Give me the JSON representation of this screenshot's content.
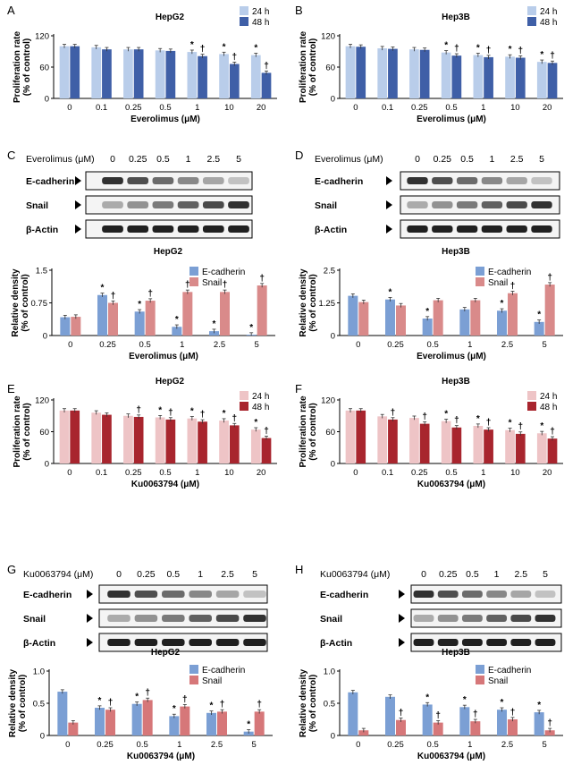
{
  "figure": {
    "panels": [
      "A",
      "B",
      "C",
      "D",
      "E",
      "F",
      "G",
      "H"
    ],
    "prolif_ylabel": [
      "Proliferation rate",
      "(% of control)"
    ],
    "density_ylabel": [
      "Relative density",
      "(% of control)"
    ]
  },
  "colors": {
    "light_blue": "#b9cdea",
    "dark_blue": "#3f5fa7",
    "density_blue": "#7b9fd4",
    "density_red": "#d98a8a",
    "light_red": "#eec4c6",
    "dark_red": "#a8252e",
    "density_red2": "#d67779"
  },
  "blots": [
    {
      "panel": "C",
      "x_label": "Everolimus (μM)",
      "concentrations": [
        "0",
        "0.25",
        "0.5",
        "1",
        "2.5",
        "5"
      ],
      "bands": [
        "E-cadherin",
        "Snail",
        "β-Actin"
      ]
    },
    {
      "panel": "D",
      "x_label": "Everolimus (μM)",
      "concentrations": [
        "0",
        "0.25",
        "0.5",
        "1",
        "2.5",
        "5"
      ],
      "bands": [
        "E-cadherin",
        "Snail",
        "β-Actin"
      ]
    },
    {
      "panel": "G",
      "x_label": "Ku0063794 (μM)",
      "concentrations": [
        "0",
        "0.25",
        "0.5",
        "1",
        "2.5",
        "5"
      ],
      "bands": [
        "E-cadherin",
        "Snail",
        "β-Actin"
      ]
    },
    {
      "panel": "H",
      "x_label": "Ku0063794 (μM)",
      "concentrations": [
        "0",
        "0.25",
        "0.5",
        "1",
        "2.5",
        "5"
      ],
      "bands": [
        "E-cadherin",
        "Snail",
        "β-Actin"
      ]
    }
  ],
  "chart_data": [
    {
      "panel": "A",
      "type": "bar",
      "title": "HepG2",
      "xlabel": "Everolimus (μM)",
      "ylabel": "Proliferation rate (% of control)",
      "categories": [
        "0",
        "0.1",
        "0.25",
        "0.5",
        "1",
        "10",
        "20"
      ],
      "ylim": [
        0,
        120
      ],
      "yticks": [
        "0",
        "60",
        "120"
      ],
      "series": [
        {
          "name": "24 h",
          "values": [
            100,
            98,
            94,
            92,
            89,
            85,
            83
          ]
        },
        {
          "name": "48 h",
          "values": [
            100,
            94,
            94,
            91,
            81,
            66,
            49
          ]
        }
      ],
      "marks": [
        [
          "",
          "",
          "",
          "",
          "*",
          "*",
          "*"
        ],
        [
          "",
          "",
          "",
          "",
          "†",
          "†",
          "†"
        ]
      ]
    },
    {
      "panel": "B",
      "type": "bar",
      "title": "Hep3B",
      "xlabel": "Everolimus (μM)",
      "ylabel": "Proliferation rate (% of control)",
      "categories": [
        "0",
        "0.1",
        "0.25",
        "0.5",
        "1",
        "10",
        "20"
      ],
      "ylim": [
        0,
        120
      ],
      "yticks": [
        "0",
        "60",
        "120"
      ],
      "series": [
        {
          "name": "24 h",
          "values": [
            100,
            96,
            94,
            88,
            83,
            80,
            70
          ]
        },
        {
          "name": "48 h",
          "values": [
            99,
            95,
            93,
            82,
            79,
            78,
            68
          ]
        }
      ],
      "marks": [
        [
          "",
          "",
          "",
          "*",
          "*",
          "*",
          "*"
        ],
        [
          "",
          "",
          "",
          "†",
          "†",
          "†",
          "†"
        ]
      ]
    },
    {
      "panel": "C",
      "type": "bar",
      "title": "HepG2",
      "xlabel": "Everolimus (μM)",
      "ylabel": "Relative density (% of control)",
      "categories": [
        "0",
        "0.25",
        "0.5",
        "1",
        "2.5",
        "5"
      ],
      "ylim": [
        0,
        1.5
      ],
      "yticks": [
        "0",
        "0.75",
        "1.5"
      ],
      "series": [
        {
          "name": "E-cadherin",
          "values": [
            0.42,
            0.93,
            0.55,
            0.2,
            0.1,
            0.02
          ]
        },
        {
          "name": "Snail",
          "values": [
            0.43,
            0.75,
            0.8,
            1.0,
            1.0,
            1.15
          ]
        }
      ],
      "marks": [
        [
          "",
          "*",
          "*",
          "*",
          "*",
          "*"
        ],
        [
          "",
          "†",
          "†",
          "†",
          "†",
          "†"
        ]
      ]
    },
    {
      "panel": "D",
      "type": "bar",
      "title": "Hep3B",
      "xlabel": "Everolimus (μM)",
      "ylabel": "Relative density (% of control)",
      "categories": [
        "0",
        "0.25",
        "0.5",
        "1",
        "2.5",
        "5"
      ],
      "ylim": [
        0,
        2.5
      ],
      "yticks": [
        "0",
        "1.25",
        "2.5"
      ],
      "series": [
        {
          "name": "E-cadherin",
          "values": [
            1.52,
            1.38,
            0.65,
            1.0,
            0.95,
            0.52
          ]
        },
        {
          "name": "Snail",
          "values": [
            1.28,
            1.15,
            1.35,
            1.35,
            1.62,
            1.95
          ]
        }
      ],
      "marks": [
        [
          "",
          "*",
          "*",
          "",
          "*",
          "*"
        ],
        [
          "",
          "",
          "",
          "",
          "†",
          "†"
        ]
      ]
    },
    {
      "panel": "E",
      "type": "bar",
      "title": "HepG2",
      "xlabel": "Ku0063794 (μM)",
      "ylabel": "Proliferation rate (% of control)",
      "categories": [
        "0",
        "0.1",
        "0.25",
        "0.5",
        "1",
        "10",
        "20"
      ],
      "ylim": [
        0,
        120
      ],
      "yticks": [
        "0",
        "60",
        "120"
      ],
      "series": [
        {
          "name": "24 h",
          "values": [
            100,
            96,
            90,
            87,
            85,
            81,
            64
          ]
        },
        {
          "name": "48 h",
          "values": [
            100,
            92,
            88,
            83,
            79,
            72,
            48
          ]
        }
      ],
      "marks": [
        [
          "",
          "",
          "",
          "*",
          "*",
          "*",
          "*"
        ],
        [
          "",
          "",
          "†",
          "†",
          "†",
          "†",
          "†"
        ]
      ]
    },
    {
      "panel": "F",
      "type": "bar",
      "title": "Hep3B",
      "xlabel": "Ku0063794 (μM)",
      "ylabel": "Proliferation rate (% of control)",
      "categories": [
        "0",
        "0.1",
        "0.25",
        "0.5",
        "1",
        "10",
        "20"
      ],
      "ylim": [
        0,
        120
      ],
      "yticks": [
        "0",
        "60",
        "120"
      ],
      "series": [
        {
          "name": "24 h",
          "values": [
            100,
            89,
            86,
            80,
            71,
            63,
            57
          ]
        },
        {
          "name": "48 h",
          "values": [
            100,
            83,
            75,
            68,
            64,
            56,
            47
          ]
        }
      ],
      "marks": [
        [
          "",
          "",
          "",
          "*",
          "*",
          "*",
          "*"
        ],
        [
          "",
          "†",
          "†",
          "†",
          "†",
          "†",
          "†"
        ]
      ]
    },
    {
      "panel": "G",
      "type": "bar",
      "title": "HepG2",
      "xlabel": "Ku0063794 (μM)",
      "ylabel": "Relative density (% of control)",
      "categories": [
        "0",
        "0.25",
        "0.5",
        "1",
        "2.5",
        "5"
      ],
      "ylim": [
        0,
        1.0
      ],
      "yticks": [
        "0",
        "0.5",
        "1.0"
      ],
      "series": [
        {
          "name": "E-cadherin",
          "values": [
            0.68,
            0.43,
            0.49,
            0.3,
            0.35,
            0.06
          ]
        },
        {
          "name": "Snail",
          "values": [
            0.2,
            0.4,
            0.55,
            0.45,
            0.37,
            0.37
          ]
        }
      ],
      "marks": [
        [
          "",
          "*",
          "*",
          "*",
          "*",
          "*"
        ],
        [
          "",
          "†",
          "†",
          "†",
          "†",
          "†"
        ]
      ]
    },
    {
      "panel": "H",
      "type": "bar",
      "title": "Hep3B",
      "xlabel": "Ku0063794 (μM)",
      "ylabel": "Relative density (% of control)",
      "categories": [
        "0",
        "0.25",
        "0.5",
        "1",
        "2.5",
        "5"
      ],
      "ylim": [
        0,
        1.0
      ],
      "yticks": [
        "0",
        "0.5",
        "1.0"
      ],
      "series": [
        {
          "name": "E-cadherin",
          "values": [
            0.67,
            0.6,
            0.48,
            0.44,
            0.4,
            0.36
          ]
        },
        {
          "name": "Snail",
          "values": [
            0.08,
            0.24,
            0.2,
            0.22,
            0.25,
            0.08
          ]
        }
      ],
      "marks": [
        [
          "",
          "",
          "*",
          "*",
          "*",
          "*"
        ],
        [
          "",
          "†",
          "†",
          "†",
          "†",
          "†"
        ]
      ]
    }
  ]
}
